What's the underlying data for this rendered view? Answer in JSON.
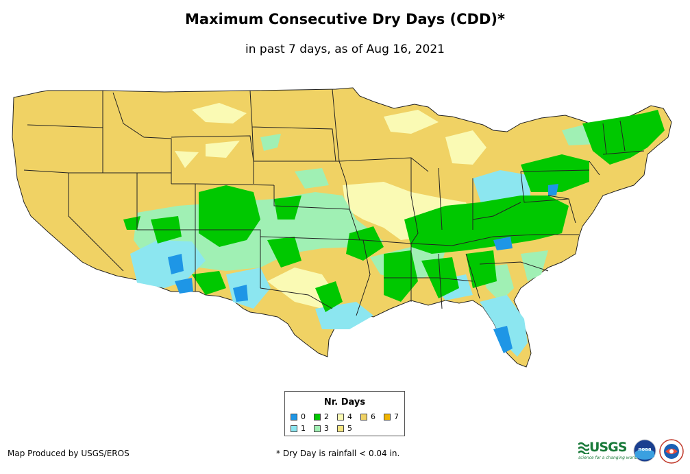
{
  "header": {
    "title": "Maximum Consecutive Dry Days (CDD)*",
    "subtitle": "in past 7 days, as of Aug 16, 2021"
  },
  "legend": {
    "title": "Nr. Days",
    "items": [
      {
        "label": "0",
        "color": "#1e96e6"
      },
      {
        "label": "2",
        "color": "#00c800"
      },
      {
        "label": "4",
        "color": "#fafab4"
      },
      {
        "label": "6",
        "color": "#f0d264"
      },
      {
        "label": "7",
        "color": "#f0b400"
      },
      {
        "label": "1",
        "color": "#8ce6f0"
      },
      {
        "label": "3",
        "color": "#a0f0b4"
      },
      {
        "label": "5",
        "color": "#f5e682"
      }
    ]
  },
  "footer": {
    "credit": "Map Produced by USGS/EROS",
    "note": "* Dry Day is rainfall < 0.04 in."
  },
  "logos": {
    "usgs_word": "USGS",
    "usgs_tagline": "science for a changing world",
    "noaa": "noaa"
  },
  "colors": {
    "state_border": "#222222",
    "dry6": "#f0d264",
    "dry5": "#f5e682",
    "dry4": "#fafab4",
    "wet3": "#a0f0b4",
    "wet2": "#00c800",
    "wet1": "#8ce6f0",
    "wet0": "#1e96e6"
  }
}
